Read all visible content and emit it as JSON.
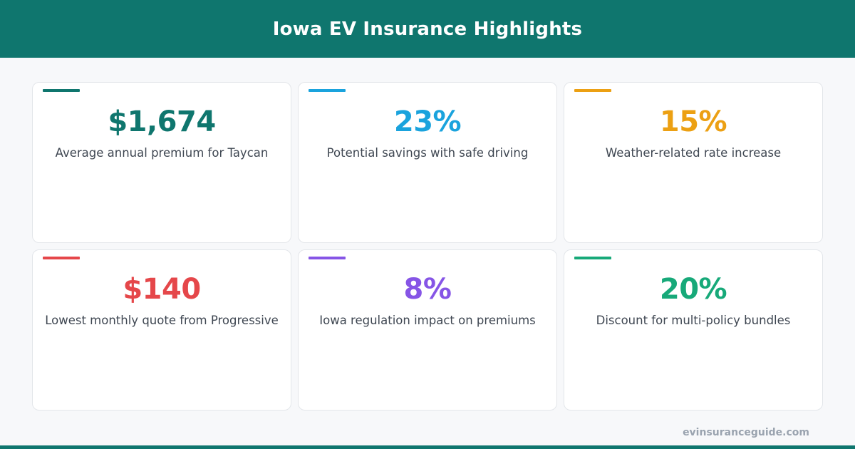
{
  "header": {
    "title": "Iowa EV Insurance Highlights"
  },
  "cards": [
    {
      "value": "$1,674",
      "label": "Average annual premium for Taycan",
      "color": "#0f766e"
    },
    {
      "value": "23%",
      "label": "Potential savings with safe driving",
      "color": "#1aa3dd"
    },
    {
      "value": "15%",
      "label": "Weather-related rate increase",
      "color": "#eca013"
    },
    {
      "value": "$140",
      "label": "Lowest monthly quote from Progressive",
      "color": "#e5474a"
    },
    {
      "value": "8%",
      "label": "Iowa regulation impact on premiums",
      "color": "#8655e6"
    },
    {
      "value": "20%",
      "label": "Discount for multi-policy bundles",
      "color": "#17a979"
    }
  ],
  "footer": {
    "site": "evinsuranceguide.com"
  },
  "colors": {
    "brand": "#0f766e",
    "background": "#f7f8fa",
    "label_text": "#3f4752",
    "footer_text": "#9aa3af"
  }
}
